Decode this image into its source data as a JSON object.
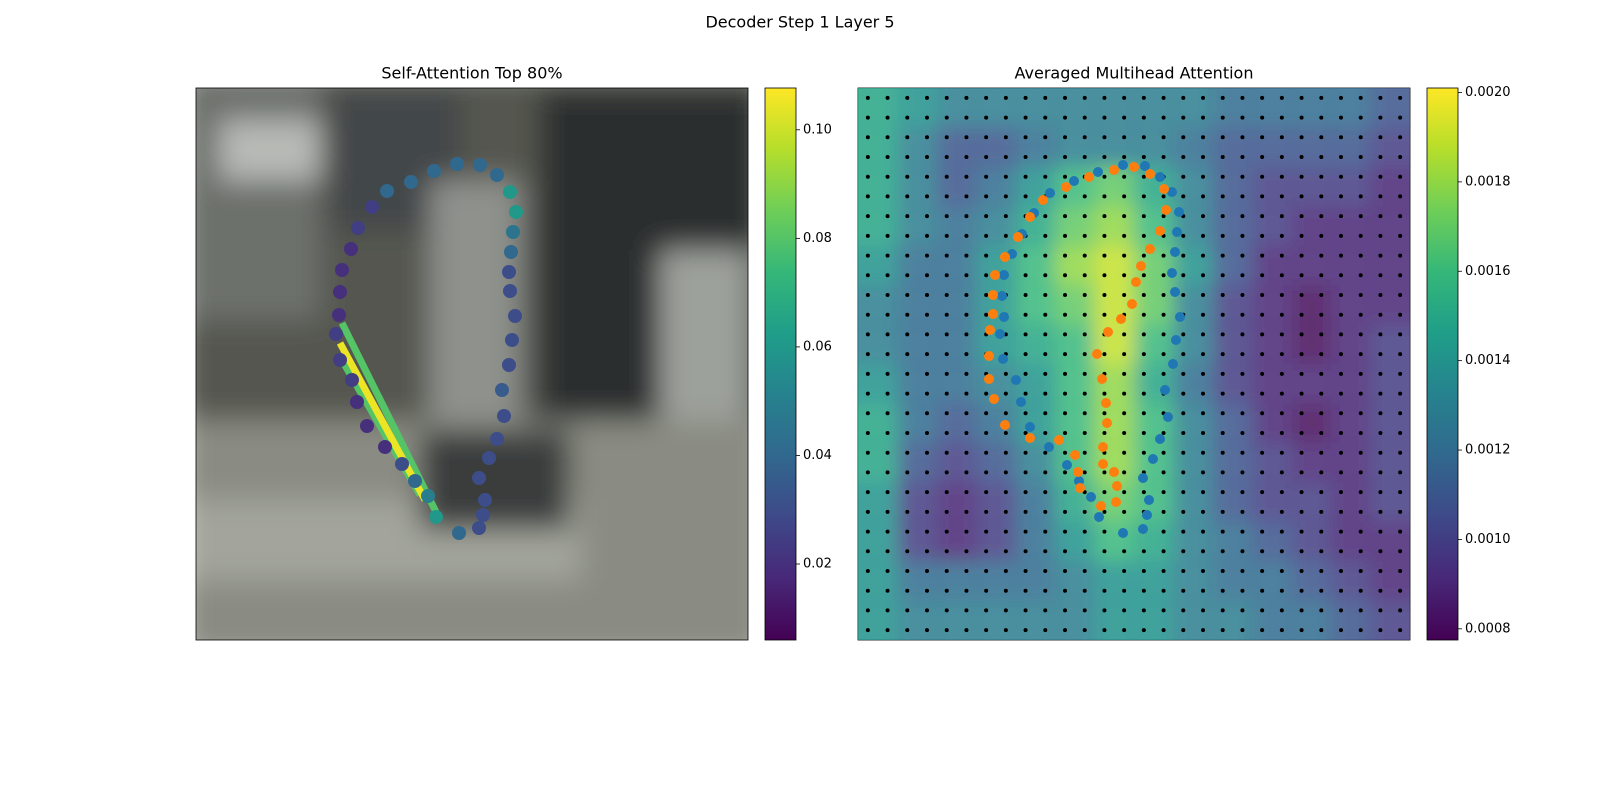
{
  "title": "Decoder Step 1 Layer 5",
  "chart_data": [
    {
      "type": "scatter",
      "title": "Self-Attention Top 80%",
      "colormap": "viridis",
      "xlim": [
        0,
        552
      ],
      "ylim": [
        552,
        0
      ],
      "clim": [
        0.006,
        0.1077
      ],
      "cticks": [
        0.02,
        0.04,
        0.06,
        0.08,
        {
          "value": 0.1,
          "label": "0.10"
        }
      ],
      "x": [
        261,
        284,
        301,
        314,
        320,
        317,
        315,
        313,
        314,
        319,
        316,
        313,
        306,
        308,
        301,
        293,
        283,
        289,
        287,
        283,
        263,
        240,
        232,
        219,
        206,
        189,
        171,
        161,
        156,
        144,
        140,
        143,
        144,
        146,
        155,
        162,
        176,
        191,
        215,
        238
      ],
      "y": [
        76,
        77,
        87,
        104,
        124,
        144,
        164,
        184,
        203,
        228,
        252,
        277,
        302,
        328,
        351,
        370,
        390,
        412,
        427,
        440,
        445,
        429,
        408,
        393,
        376,
        359,
        338,
        314,
        292,
        272,
        246,
        227,
        204,
        182,
        161,
        140,
        119,
        103,
        94,
        83
      ],
      "values": [
        0.04,
        0.04,
        0.04,
        0.06,
        0.06,
        0.045,
        0.04,
        0.03,
        0.03,
        0.03,
        0.03,
        0.03,
        0.035,
        0.03,
        0.03,
        0.03,
        0.03,
        0.03,
        0.03,
        0.03,
        0.04,
        0.06,
        0.05,
        0.04,
        0.03,
        0.02,
        0.02,
        0.02,
        0.025,
        0.025,
        0.025,
        0.02,
        0.02,
        0.02,
        0.02,
        0.025,
        0.025,
        0.04,
        0.04,
        0.04
      ],
      "lines": [
        {
          "x": [
            146,
            240
          ],
          "y": [
            235,
            424
          ],
          "value": 0.08
        },
        {
          "x": [
            143,
            224
          ],
          "y": [
            267,
            407
          ],
          "value": 0.08
        },
        {
          "x": [
            144,
            229
          ],
          "y": [
            255,
            412
          ],
          "value": 0.105
        }
      ]
    },
    {
      "type": "heatmap",
      "title": "Averaged Multihead Attention",
      "colormap": "viridis",
      "xlim": [
        0,
        552
      ],
      "ylim": [
        552,
        0
      ],
      "clim": [
        0.000775,
        0.00201
      ],
      "cticks": [
        0.0008,
        {
          "value": 0.001,
          "label": "0.0010"
        },
        0.0012,
        0.0014,
        0.0016,
        0.0018,
        {
          "value": 0.002,
          "label": "0.0020"
        }
      ],
      "z": [
        [
          0.0015,
          0.0014,
          0.0013,
          0.0013,
          0.0013,
          0.0013,
          0.0013,
          0.0013,
          0.0013,
          0.0012,
          0.0012,
          0.0012,
          0.0012,
          0.0011
        ],
        [
          0.0015,
          0.0013,
          0.0011,
          0.0011,
          0.0012,
          0.0013,
          0.0013,
          0.0013,
          0.0012,
          0.0011,
          0.0011,
          0.0011,
          0.0011,
          0.001
        ],
        [
          0.0015,
          0.0013,
          0.0011,
          0.0012,
          0.0014,
          0.0016,
          0.0017,
          0.0015,
          0.0013,
          0.0011,
          0.001,
          0.001,
          0.001,
          0.0009
        ],
        [
          0.0015,
          0.0013,
          0.0012,
          0.0013,
          0.0015,
          0.0017,
          0.0018,
          0.0016,
          0.0013,
          0.0011,
          0.001,
          0.0009,
          0.0009,
          0.0009
        ],
        [
          0.0014,
          0.0012,
          0.0012,
          0.0014,
          0.0016,
          0.0018,
          0.0019,
          0.0017,
          0.0014,
          0.0011,
          0.0009,
          0.0009,
          0.0009,
          0.0009
        ],
        [
          0.0013,
          0.0012,
          0.0012,
          0.0014,
          0.0016,
          0.0017,
          0.0019,
          0.0017,
          0.0013,
          0.001,
          0.0009,
          0.0008,
          0.0009,
          0.0009
        ],
        [
          0.0013,
          0.0012,
          0.0012,
          0.0014,
          0.0015,
          0.0016,
          0.0019,
          0.0016,
          0.0013,
          0.001,
          0.0009,
          0.0008,
          0.0009,
          0.001
        ],
        [
          0.0014,
          0.0012,
          0.0012,
          0.0013,
          0.0014,
          0.0016,
          0.0018,
          0.0015,
          0.0012,
          0.001,
          0.0009,
          0.0009,
          0.0009,
          0.001
        ],
        [
          0.0015,
          0.0012,
          0.0011,
          0.0012,
          0.0014,
          0.0016,
          0.0018,
          0.0016,
          0.0013,
          0.0011,
          0.0009,
          0.0008,
          0.0009,
          0.001
        ],
        [
          0.0015,
          0.0011,
          0.001,
          0.0011,
          0.0013,
          0.0016,
          0.0018,
          0.0016,
          0.0013,
          0.0011,
          0.001,
          0.0009,
          0.0009,
          0.001
        ],
        [
          0.0014,
          0.001,
          0.0009,
          0.001,
          0.0012,
          0.0015,
          0.0017,
          0.0016,
          0.0013,
          0.0011,
          0.001,
          0.001,
          0.0009,
          0.001
        ],
        [
          0.0014,
          0.001,
          0.0009,
          0.001,
          0.0012,
          0.0014,
          0.0016,
          0.0015,
          0.0013,
          0.0012,
          0.0011,
          0.001,
          0.0009,
          0.0009
        ],
        [
          0.0014,
          0.0012,
          0.0012,
          0.0012,
          0.0012,
          0.0013,
          0.0014,
          0.0014,
          0.0013,
          0.0012,
          0.0012,
          0.0011,
          0.001,
          0.0009
        ],
        [
          0.0014,
          0.0013,
          0.0013,
          0.0013,
          0.0013,
          0.0013,
          0.0014,
          0.0014,
          0.0013,
          0.0013,
          0.0012,
          0.0012,
          0.0011,
          0.001
        ]
      ],
      "points": [
        {
          "color": "#1f77b4",
          "x": [
            240,
            265,
            287,
            302,
            314,
            321,
            319,
            317,
            314,
            317,
            322,
            318,
            315,
            307,
            310,
            302,
            295,
            285,
            291,
            289,
            285,
            265,
            241,
            233,
            221,
            209,
            191,
            172,
            163,
            158,
            145,
            142,
            146,
            144,
            146,
            154,
            164,
            176,
            192,
            216
          ],
          "y": [
            84,
            77,
            78,
            89,
            104,
            124,
            144,
            164,
            185,
            204,
            229,
            252,
            276,
            302,
            329,
            351,
            371,
            390,
            412,
            427,
            441,
            445,
            429,
            409,
            393,
            377,
            359,
            339,
            314,
            292,
            271,
            246,
            229,
            208,
            187,
            166,
            146,
            125,
            105,
            93
          ]
        },
        {
          "color": "#ff7f0e",
          "x": [
            231,
            256,
            276,
            292,
            306,
            308,
            302,
            292,
            283,
            278,
            274,
            263,
            250,
            239,
            244,
            248,
            249,
            245,
            245,
            256,
            259,
            258,
            243,
            222,
            220,
            217,
            201,
            172,
            147,
            136,
            131,
            131,
            132,
            135,
            135,
            137,
            147,
            160,
            172,
            185,
            208
          ],
          "y": [
            89,
            82,
            79,
            86,
            101,
            122,
            143,
            161,
            178,
            194,
            216,
            231,
            244,
            266,
            291,
            315,
            335,
            359,
            376,
            384,
            398,
            414,
            418,
            400,
            384,
            367,
            352,
            350,
            337,
            311,
            291,
            268,
            242,
            226,
            207,
            187,
            169,
            149,
            129,
            112,
            99
          ]
        }
      ]
    }
  ]
}
